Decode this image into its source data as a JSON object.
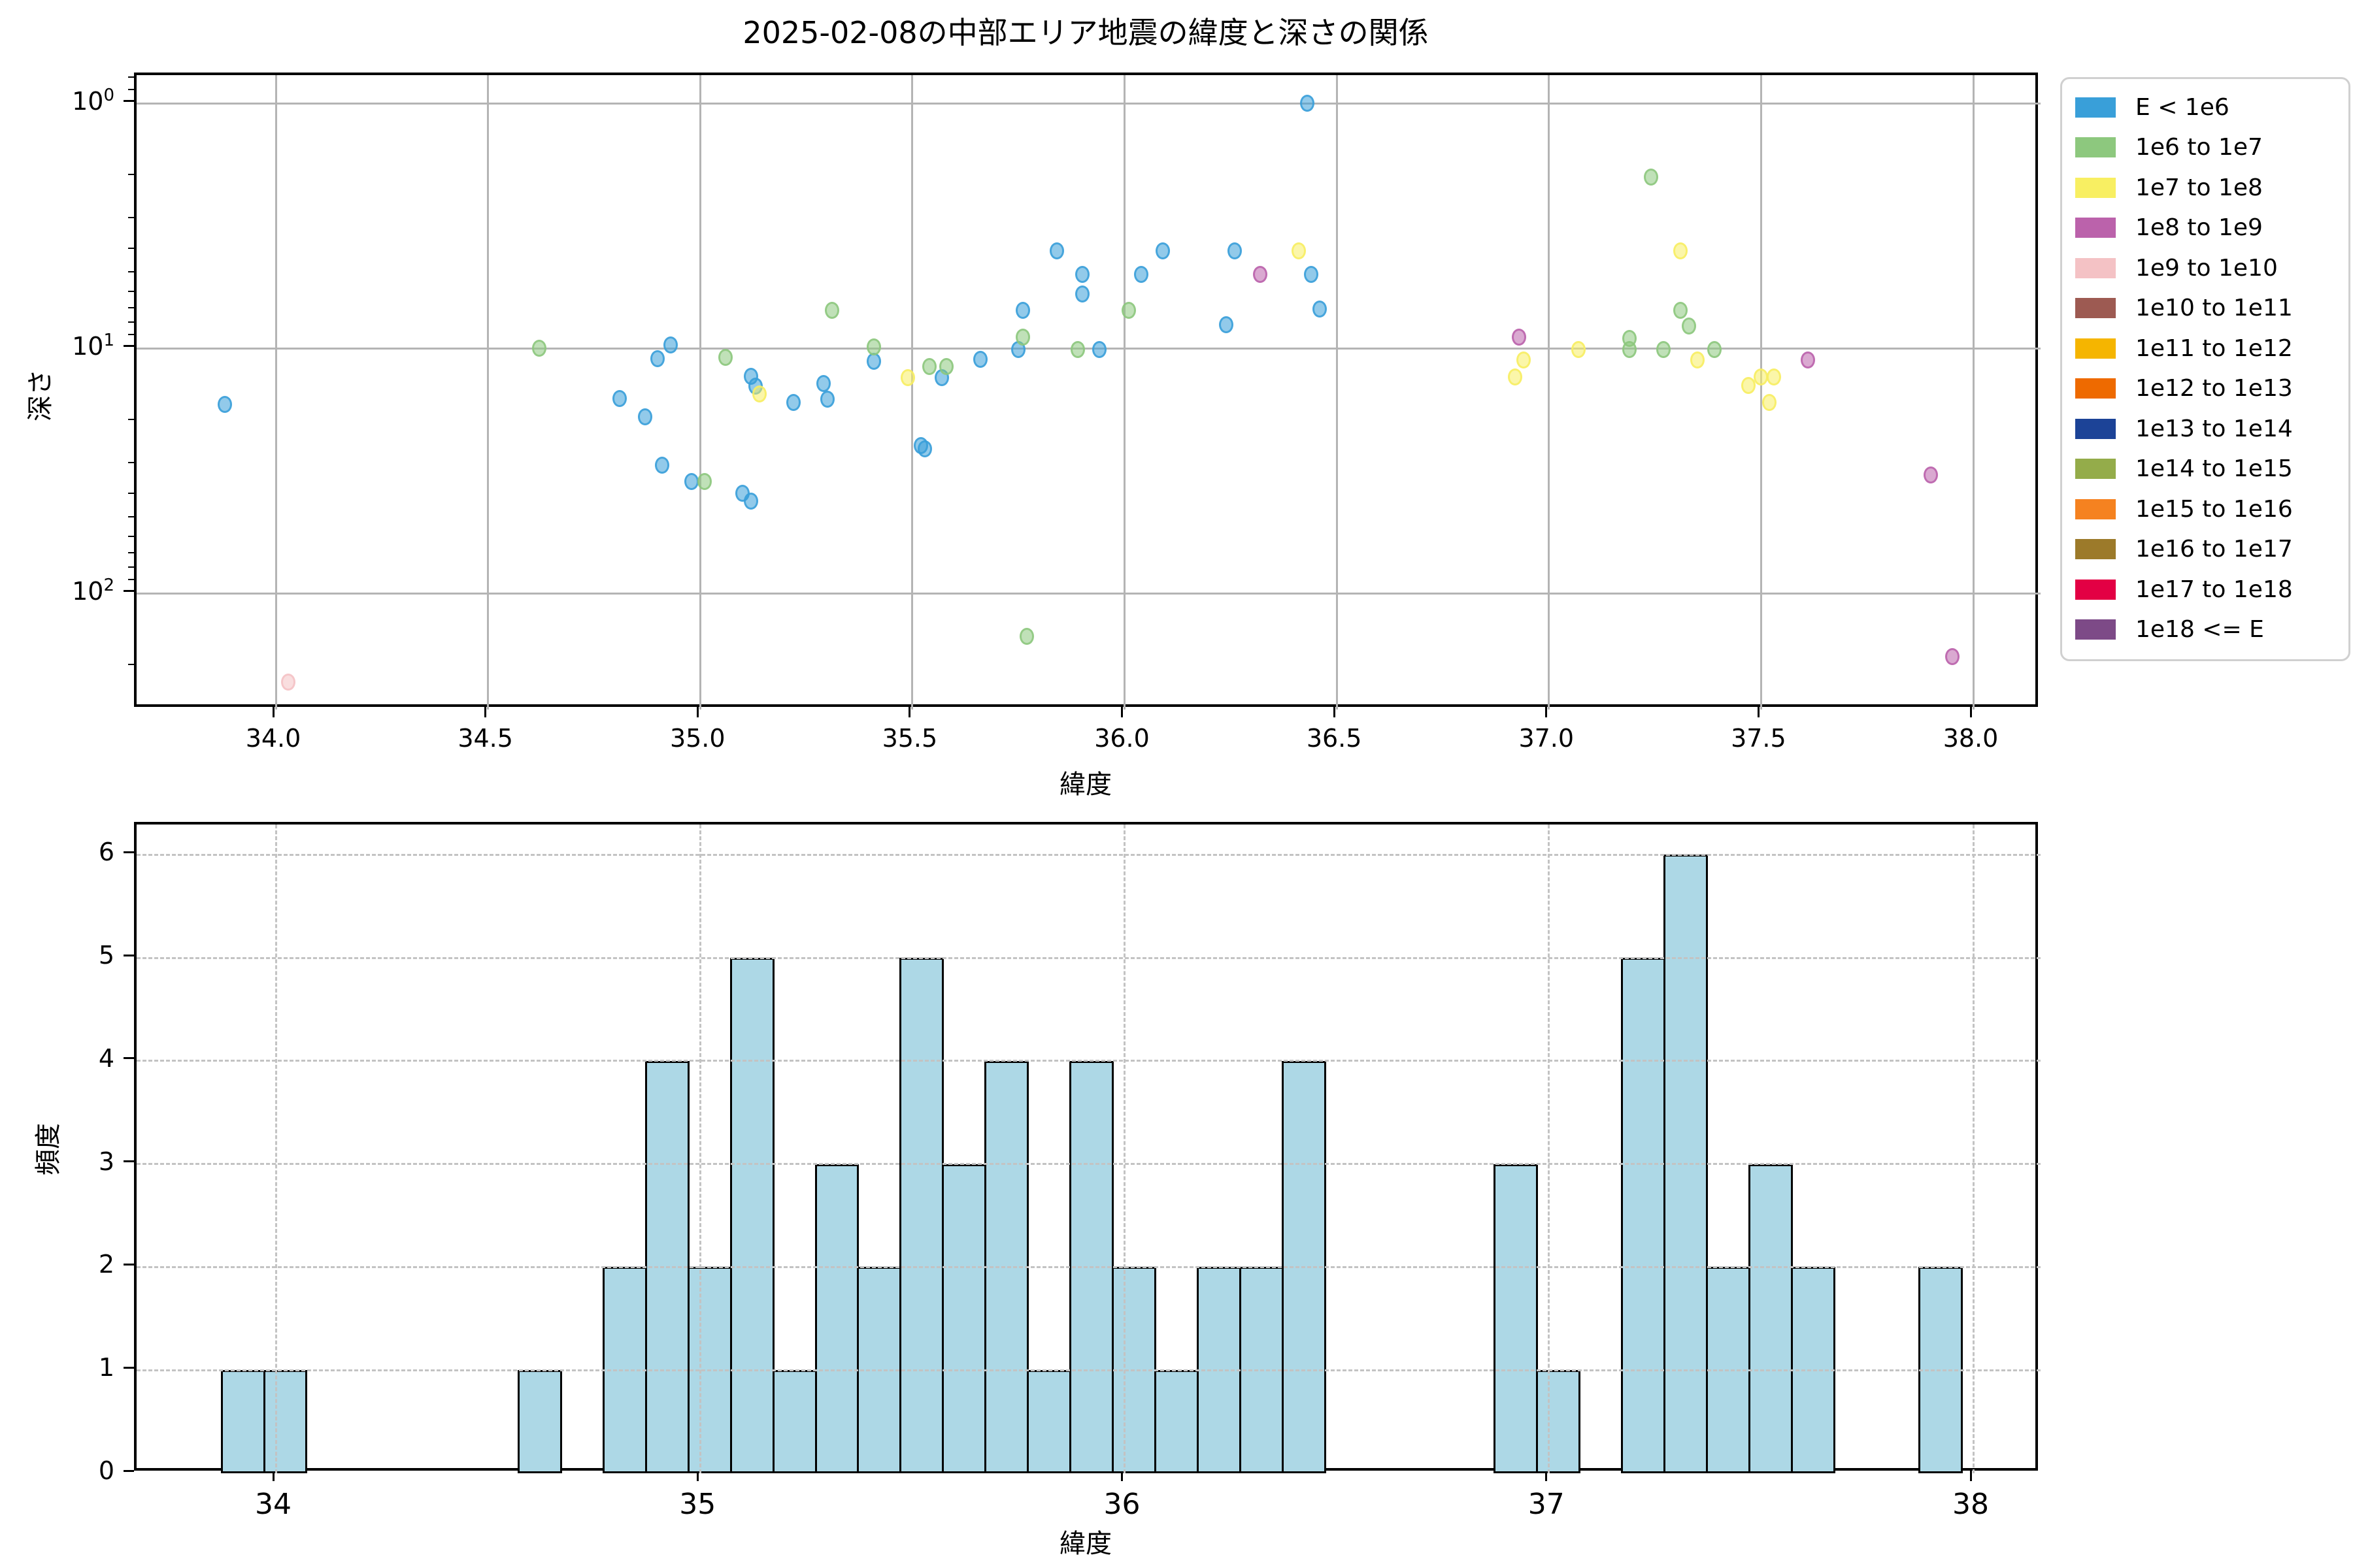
{
  "title": "2025-02-08の中部エリア地震の緯度と深さの関係",
  "legend": {
    "items": [
      {
        "label": "E < 1e6",
        "color": "#399fd9"
      },
      {
        "label": "1e6 to 1e7",
        "color": "#8dc87e"
      },
      {
        "label": "1e7 to 1e8",
        "color": "#f8ef62"
      },
      {
        "label": "1e8 to 1e9",
        "color": "#bb62ab"
      },
      {
        "label": "1e9 to 1e10",
        "color": "#f4c2c5"
      },
      {
        "label": "1e10 to 1e11",
        "color": "#9d5a52"
      },
      {
        "label": "1e11 to 1e12",
        "color": "#f5b500"
      },
      {
        "label": "1e12 to 1e13",
        "color": "#ee6a00"
      },
      {
        "label": "1e13 to 1e14",
        "color": "#1c4397"
      },
      {
        "label": "1e14 to 1e15",
        "color": "#94ac4a"
      },
      {
        "label": "1e15 to 1e16",
        "color": "#f58220"
      },
      {
        "label": "1e16 to 1e17",
        "color": "#9c7a2a"
      },
      {
        "label": "1e17 to 1e18",
        "color": "#e30044"
      },
      {
        "label": "1e18 <= E",
        "color": "#7d4a87"
      }
    ]
  },
  "chart_data": [
    {
      "type": "scatter",
      "title": "2025-02-08の中部エリア地震の緯度と深さの関係",
      "xlabel": "緯度",
      "ylabel": "深さ",
      "xlim": [
        33.67,
        38.16
      ],
      "x_ticks": [
        34.0,
        34.5,
        35.0,
        35.5,
        36.0,
        36.5,
        37.0,
        37.5,
        38.0
      ],
      "y_scale": "log-inverted",
      "y_tick_exponents": [
        0,
        1,
        2
      ],
      "ylim": [
        0.77,
        298
      ],
      "grid": true,
      "legend_position": "outside-right",
      "series": [
        {
          "name": "E < 1e6",
          "color": "#399fd9",
          "points": [
            [
              33.88,
              17
            ],
            [
              34.81,
              16
            ],
            [
              34.87,
              19
            ],
            [
              34.9,
              11
            ],
            [
              34.93,
              9.7
            ],
            [
              34.91,
              30
            ],
            [
              34.98,
              35
            ],
            [
              35.1,
              39
            ],
            [
              35.12,
              42
            ],
            [
              35.12,
              13
            ],
            [
              35.13,
              14.3
            ],
            [
              35.22,
              16.6
            ],
            [
              35.29,
              13.9
            ],
            [
              35.3,
              16.1
            ],
            [
              35.41,
              11.3
            ],
            [
              35.52,
              25
            ],
            [
              35.53,
              25.8
            ],
            [
              35.57,
              13.2
            ],
            [
              35.66,
              11.1
            ],
            [
              35.75,
              10.1
            ],
            [
              35.76,
              7.0
            ],
            [
              35.84,
              4.0
            ],
            [
              35.9,
              5.0
            ],
            [
              35.9,
              6.0
            ],
            [
              35.94,
              10.1
            ],
            [
              36.04,
              5.0
            ],
            [
              36.09,
              4.0
            ],
            [
              36.24,
              8.0
            ],
            [
              36.26,
              4.0
            ],
            [
              36.43,
              1.0
            ],
            [
              36.44,
              5.0
            ],
            [
              36.46,
              6.9
            ]
          ]
        },
        {
          "name": "1e6 to 1e7",
          "color": "#8dc87e",
          "points": [
            [
              34.62,
              10.0
            ],
            [
              35.01,
              35
            ],
            [
              35.06,
              10.9
            ],
            [
              35.31,
              7.0
            ],
            [
              35.41,
              9.9
            ],
            [
              35.54,
              11.9
            ],
            [
              35.58,
              11.9
            ],
            [
              35.76,
              9.0
            ],
            [
              35.77,
              150
            ],
            [
              35.89,
              10.1
            ],
            [
              36.01,
              7.0
            ],
            [
              37.19,
              9.1
            ],
            [
              37.19,
              10.1
            ],
            [
              37.24,
              2.0
            ],
            [
              37.27,
              10.1
            ],
            [
              37.31,
              7.0
            ],
            [
              37.33,
              8.1
            ],
            [
              37.39,
              10.1
            ]
          ]
        },
        {
          "name": "1e7 to 1e8",
          "color": "#f8ef62",
          "points": [
            [
              35.14,
              15.4
            ],
            [
              35.49,
              13.2
            ],
            [
              36.41,
              4.0
            ],
            [
              36.92,
              13.1
            ],
            [
              36.94,
              11.2
            ],
            [
              37.07,
              10.1
            ],
            [
              37.31,
              4.0
            ],
            [
              37.35,
              11.2
            ],
            [
              37.47,
              14.2
            ],
            [
              37.5,
              13.1
            ],
            [
              37.53,
              13.1
            ],
            [
              37.52,
              16.6
            ]
          ]
        },
        {
          "name": "1e8 to 1e9",
          "color": "#bb62ab",
          "points": [
            [
              36.32,
              5.0
            ],
            [
              36.93,
              9.0
            ],
            [
              37.61,
              11.2
            ],
            [
              37.9,
              33
            ],
            [
              37.95,
              181
            ]
          ]
        },
        {
          "name": "1e9 to 1e10",
          "color": "#f4c2c5",
          "points": [
            [
              34.03,
              230
            ]
          ]
        }
      ]
    },
    {
      "type": "bar",
      "xlabel": "緯度",
      "ylabel": "頻度",
      "xlim": [
        33.67,
        38.16
      ],
      "ylim": [
        0,
        6.29
      ],
      "x_ticks": [
        34,
        35,
        36,
        37,
        38
      ],
      "y_ticks": [
        0,
        1,
        2,
        3,
        4,
        5,
        6
      ],
      "grid": "dashed",
      "bin_width": 0.1,
      "bar_color": "#add8e6",
      "bar_edge": "#000000",
      "bars": [
        [
          33.87,
          1
        ],
        [
          33.97,
          1
        ],
        [
          34.57,
          1
        ],
        [
          34.77,
          2
        ],
        [
          34.87,
          4
        ],
        [
          34.97,
          2
        ],
        [
          35.07,
          5
        ],
        [
          35.17,
          1
        ],
        [
          35.27,
          3
        ],
        [
          35.37,
          2
        ],
        [
          35.47,
          5
        ],
        [
          35.57,
          3
        ],
        [
          35.67,
          4
        ],
        [
          35.77,
          1
        ],
        [
          35.87,
          4
        ],
        [
          35.97,
          2
        ],
        [
          36.07,
          1
        ],
        [
          36.17,
          2
        ],
        [
          36.27,
          2
        ],
        [
          36.37,
          4
        ],
        [
          36.87,
          3
        ],
        [
          36.97,
          1
        ],
        [
          37.17,
          5
        ],
        [
          37.27,
          6
        ],
        [
          37.37,
          2
        ],
        [
          37.47,
          3
        ],
        [
          37.57,
          2
        ],
        [
          37.87,
          2
        ]
      ]
    }
  ]
}
